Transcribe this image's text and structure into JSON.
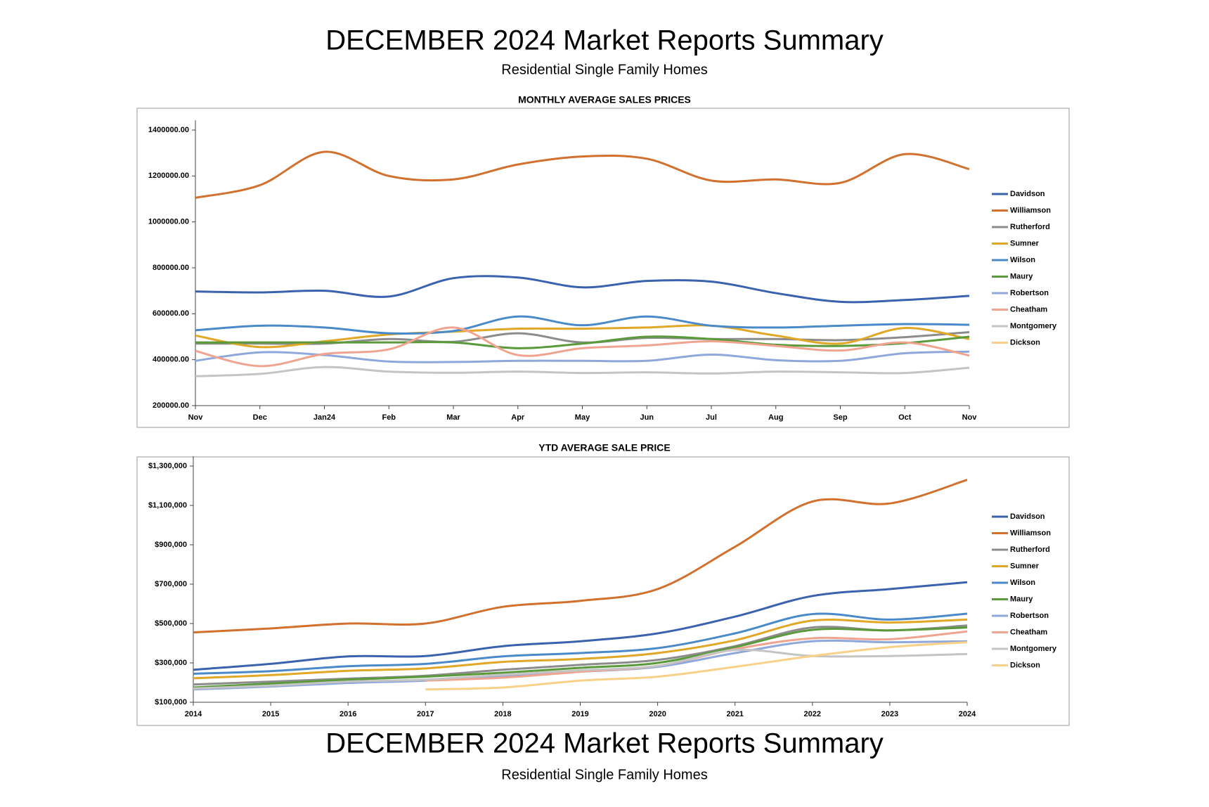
{
  "header": {
    "title": "DECEMBER 2024 Market Reports Summary",
    "subtitle": "Residential Single Family Homes"
  },
  "footer": {
    "title": "DECEMBER 2024 Market Reports Summary",
    "subtitle": "Residential Single Family Homes"
  },
  "chart_data": [
    {
      "type": "line",
      "title": "MONTHLY AVERAGE SALES PRICES",
      "categories": [
        "Nov",
        "Dec",
        "Jan24",
        "Feb",
        "Mar",
        "Apr",
        "May",
        "Jun",
        "Jul",
        "Aug",
        "Sep",
        "Oct",
        "Nov"
      ],
      "ylim": [
        200000,
        1400000
      ],
      "yticks": [
        {
          "value": 200000,
          "label": "200000.00"
        },
        {
          "value": 400000,
          "label": "400000.00"
        },
        {
          "value": 600000,
          "label": "600000.00"
        },
        {
          "value": 800000,
          "label": "800000.00"
        },
        {
          "value": 1000000,
          "label": "1000000.00"
        },
        {
          "value": 1200000,
          "label": "1200000.00"
        },
        {
          "value": 1400000,
          "label": "1400000.00"
        }
      ],
      "series": [
        {
          "name": "Davidson",
          "color": "#3a62ae",
          "values": [
            697000,
            693000,
            700000,
            675000,
            755000,
            758000,
            715000,
            743000,
            740000,
            690000,
            652000,
            660000,
            678000
          ]
        },
        {
          "name": "Williamson",
          "color": "#d2702e",
          "values": [
            1105000,
            1160000,
            1305000,
            1200000,
            1185000,
            1250000,
            1285000,
            1275000,
            1180000,
            1185000,
            1170000,
            1295000,
            1230000
          ]
        },
        {
          "name": "Rutherford",
          "color": "#8c8c8c",
          "values": [
            470000,
            470000,
            470000,
            490000,
            478000,
            515000,
            475000,
            495000,
            490000,
            490000,
            485000,
            498000,
            520000
          ]
        },
        {
          "name": "Sumner",
          "color": "#e0a826",
          "values": [
            505000,
            455000,
            480000,
            510000,
            522000,
            535000,
            535000,
            540000,
            548000,
            505000,
            470000,
            538000,
            490000
          ]
        },
        {
          "name": "Wilson",
          "color": "#4a8ac8",
          "values": [
            528000,
            548000,
            540000,
            515000,
            525000,
            588000,
            550000,
            588000,
            548000,
            540000,
            548000,
            555000,
            552000
          ]
        },
        {
          "name": "Maury",
          "color": "#5a9a3a",
          "values": [
            475000,
            475000,
            475000,
            475000,
            475000,
            450000,
            470000,
            500000,
            490000,
            465000,
            460000,
            472000,
            500000
          ]
        },
        {
          "name": "Robertson",
          "color": "#8fa8dc",
          "values": [
            395000,
            432000,
            420000,
            392000,
            390000,
            395000,
            395000,
            395000,
            422000,
            398000,
            395000,
            428000,
            435000
          ]
        },
        {
          "name": "Cheatham",
          "color": "#f0a490",
          "values": [
            438000,
            372000,
            425000,
            445000,
            540000,
            420000,
            450000,
            462000,
            480000,
            460000,
            440000,
            475000,
            418000
          ]
        },
        {
          "name": "Montgomery",
          "color": "#c4c4c4",
          "values": [
            328000,
            338000,
            368000,
            348000,
            343000,
            348000,
            342000,
            345000,
            340000,
            348000,
            345000,
            342000,
            365000
          ]
        },
        {
          "name": "Dickson",
          "color": "#f8d088",
          "values": [
            null,
            null,
            null,
            null,
            null,
            null,
            null,
            null,
            null,
            null,
            null,
            null,
            null
          ]
        }
      ]
    },
    {
      "type": "line",
      "title": "YTD AVERAGE SALE PRICE",
      "x": [
        2014,
        2015,
        2016,
        2017,
        2018,
        2019,
        2020,
        2021,
        2022,
        2023,
        2024
      ],
      "xlim": [
        2014,
        2024
      ],
      "xticks": [
        2014,
        2015,
        2016,
        2017,
        2018,
        2019,
        2020,
        2021,
        2022,
        2023,
        2024
      ],
      "ylim": [
        100000,
        1300000
      ],
      "yticks": [
        {
          "value": 100000,
          "label": "$100,000"
        },
        {
          "value": 300000,
          "label": "$300,000"
        },
        {
          "value": 500000,
          "label": "$500,000"
        },
        {
          "value": 700000,
          "label": "$700,000"
        },
        {
          "value": 900000,
          "label": "$900,000"
        },
        {
          "value": 1100000,
          "label": "$1,100,000"
        },
        {
          "value": 1300000,
          "label": "$1,300,000"
        }
      ],
      "series": [
        {
          "name": "Davidson",
          "color": "#3a62ae",
          "values": [
            265000,
            295000,
            333000,
            335000,
            385000,
            410000,
            450000,
            535000,
            640000,
            675000,
            710000
          ]
        },
        {
          "name": "Williamson",
          "color": "#d2702e",
          "values": [
            455000,
            475000,
            500000,
            500000,
            585000,
            615000,
            675000,
            890000,
            1120000,
            1110000,
            1230000
          ]
        },
        {
          "name": "Rutherford",
          "color": "#8c8c8c",
          "values": [
            190000,
            205000,
            220000,
            235000,
            265000,
            290000,
            315000,
            385000,
            480000,
            465000,
            490000
          ]
        },
        {
          "name": "Sumner",
          "color": "#e0a826",
          "values": [
            222000,
            238000,
            260000,
            272000,
            305000,
            320000,
            350000,
            415000,
            515000,
            505000,
            520000
          ]
        },
        {
          "name": "Wilson",
          "color": "#4a8ac8",
          "values": [
            245000,
            258000,
            283000,
            295000,
            333000,
            350000,
            375000,
            450000,
            548000,
            520000,
            550000
          ]
        },
        {
          "name": "Maury",
          "color": "#5a9a3a",
          "values": [
            175000,
            195000,
            215000,
            230000,
            250000,
            275000,
            300000,
            380000,
            468000,
            465000,
            480000
          ]
        },
        {
          "name": "Robertson",
          "color": "#8fa8dc",
          "values": [
            165000,
            180000,
            198000,
            210000,
            235000,
            255000,
            280000,
            350000,
            410000,
            405000,
            410000
          ]
        },
        {
          "name": "Cheatham",
          "color": "#f0a490",
          "values": [
            null,
            null,
            null,
            210000,
            225000,
            255000,
            285000,
            370000,
            425000,
            420000,
            460000
          ]
        },
        {
          "name": "Montgomery",
          "color": "#c4c4c4",
          "values": [
            170000,
            185000,
            205000,
            215000,
            240000,
            262000,
            285000,
            365000,
            335000,
            335000,
            345000
          ]
        },
        {
          "name": "Dickson",
          "color": "#f8d088",
          "values": [
            null,
            null,
            null,
            165000,
            175000,
            210000,
            230000,
            280000,
            335000,
            380000,
            405000
          ]
        }
      ]
    }
  ]
}
